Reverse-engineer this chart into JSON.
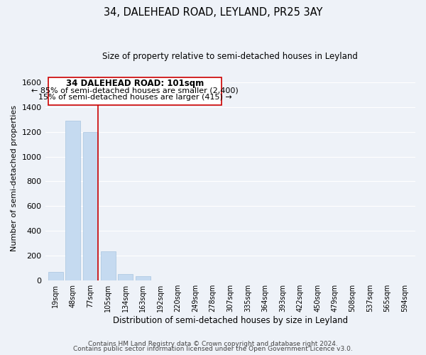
{
  "title": "34, DALEHEAD ROAD, LEYLAND, PR25 3AY",
  "subtitle": "Size of property relative to semi-detached houses in Leyland",
  "xlabel": "Distribution of semi-detached houses by size in Leyland",
  "ylabel": "Number of semi-detached properties",
  "bar_labels": [
    "19sqm",
    "48sqm",
    "77sqm",
    "105sqm",
    "134sqm",
    "163sqm",
    "192sqm",
    "220sqm",
    "249sqm",
    "278sqm",
    "307sqm",
    "335sqm",
    "364sqm",
    "393sqm",
    "422sqm",
    "450sqm",
    "479sqm",
    "508sqm",
    "537sqm",
    "565sqm",
    "594sqm"
  ],
  "bar_values": [
    65,
    1290,
    1200,
    235,
    50,
    30,
    0,
    0,
    0,
    0,
    0,
    0,
    0,
    0,
    0,
    0,
    0,
    0,
    0,
    0,
    0
  ],
  "bar_color": "#c5daf0",
  "bar_edgecolor": "#a8c4e0",
  "annotation_title": "34 DALEHEAD ROAD: 101sqm",
  "annotation_line1": "← 85% of semi-detached houses are smaller (2,400)",
  "annotation_line2": "15% of semi-detached houses are larger (415) →",
  "vline_color": "#cc0000",
  "ylim": [
    0,
    1650
  ],
  "yticks": [
    0,
    200,
    400,
    600,
    800,
    1000,
    1200,
    1400,
    1600
  ],
  "footnote1": "Contains HM Land Registry data © Crown copyright and database right 2024.",
  "footnote2": "Contains public sector information licensed under the Open Government Licence v3.0.",
  "background_color": "#eef2f8",
  "grid_color": "#ffffff"
}
